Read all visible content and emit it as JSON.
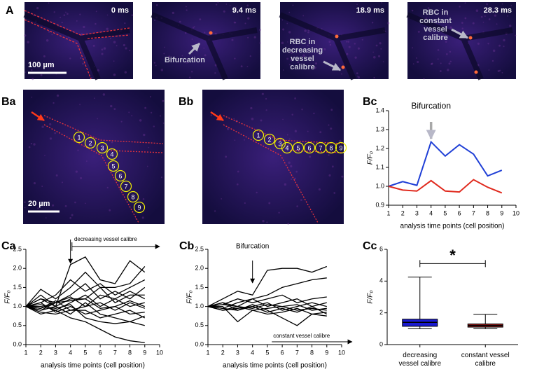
{
  "panel_labels": [
    "A",
    "Ba",
    "Bb",
    "Bc",
    "Ca",
    "Cb",
    "Cc"
  ],
  "images": [
    {
      "time": "0 ms",
      "scale_bar": "100 µm"
    },
    {
      "time": "9.4 ms",
      "annotation": [
        "Bifurcation"
      ]
    },
    {
      "time": "18.9 ms",
      "annotation": [
        "RBC in",
        "decreasing",
        "vessel",
        "calibre"
      ]
    },
    {
      "time": "28.3 ms",
      "annotation": [
        "RBC in",
        "constant",
        "vessel",
        "calibre"
      ]
    }
  ],
  "cell_images": [
    {
      "cells": [
        "1",
        "2",
        "3",
        "4",
        "5",
        "6",
        "7",
        "8",
        "9"
      ],
      "scale_bar": "20 µm"
    },
    {
      "cells": [
        "1",
        "2",
        "3",
        "4",
        "5",
        "6",
        "7",
        "8",
        "9"
      ]
    }
  ],
  "chart_data": [
    {
      "type": "line",
      "xlabel": "analysis time points (cell position)",
      "ylabel": "F/F₀",
      "annotations": [
        "Bifurcation"
      ],
      "x": [
        1,
        2,
        3,
        4,
        5,
        6,
        7,
        8,
        9
      ],
      "series": [
        {
          "color": "#1f3fd6",
          "values": [
            1.0,
            1.025,
            1.005,
            1.235,
            1.16,
            1.22,
            1.17,
            1.055,
            1.085
          ]
        },
        {
          "color": "#e02a1e",
          "values": [
            1.0,
            0.98,
            0.975,
            1.03,
            0.975,
            0.97,
            1.035,
            0.995,
            0.965
          ]
        }
      ],
      "xlim": [
        1,
        10
      ],
      "xticks": [
        1,
        2,
        3,
        4,
        5,
        6,
        7,
        8,
        9,
        10
      ],
      "ylim": [
        0.9,
        1.4
      ],
      "yticks": [
        0.9,
        {
          "value": 1,
          "label": "1.0"
        },
        1.1,
        1.2,
        1.3,
        1.4
      ]
    },
    {
      "type": "line",
      "xlabel": "analysis time points (cell position)",
      "ylabel": "F/F₀",
      "annotations": [
        "decreasing vessel calibre"
      ],
      "x": [
        1,
        2,
        3,
        4,
        5,
        6,
        7,
        8,
        9
      ],
      "series": [
        {
          "color": "#000000",
          "values": [
            1.0,
            1.2,
            1.0,
            2.1,
            2.3,
            1.7,
            1.6,
            2.2,
            1.9
          ]
        },
        {
          "color": "#000000",
          "values": [
            1.0,
            1.45,
            1.2,
            1.5,
            1.9,
            1.5,
            1.5,
            1.6,
            2.05
          ]
        },
        {
          "color": "#000000",
          "values": [
            1.0,
            1.1,
            1.3,
            1.7,
            1.4,
            1.6,
            1.3,
            1.5,
            1.7
          ]
        },
        {
          "color": "#000000",
          "values": [
            1.0,
            0.9,
            1.1,
            1.3,
            1.6,
            1.2,
            1.4,
            1.2,
            1.5
          ]
        },
        {
          "color": "#000000",
          "values": [
            1.0,
            1.3,
            1.0,
            1.2,
            1.2,
            1.5,
            1.1,
            1.3,
            1.3
          ]
        },
        {
          "color": "#000000",
          "values": [
            1.0,
            1.05,
            0.9,
            1.1,
            1.3,
            1.0,
            1.2,
            1.0,
            1.1
          ]
        },
        {
          "color": "#000000",
          "values": [
            1.0,
            0.95,
            1.15,
            0.9,
            1.0,
            1.1,
            0.9,
            1.1,
            0.95
          ]
        },
        {
          "color": "#000000",
          "values": [
            1.0,
            1.1,
            0.85,
            1.0,
            0.8,
            0.9,
            1.0,
            0.8,
            0.85
          ]
        },
        {
          "color": "#000000",
          "values": [
            1.0,
            0.85,
            0.8,
            0.9,
            0.9,
            0.7,
            0.8,
            0.9,
            0.7
          ]
        },
        {
          "color": "#000000",
          "values": [
            1.0,
            0.9,
            1.0,
            0.8,
            1.1,
            0.8,
            0.7,
            0.6,
            0.75
          ]
        },
        {
          "color": "#000000",
          "values": [
            1.0,
            1.0,
            0.95,
            1.05,
            0.7,
            0.6,
            0.55,
            0.6,
            0.5
          ]
        },
        {
          "color": "#000000",
          "values": [
            1.0,
            0.8,
            0.9,
            0.7,
            0.6,
            0.4,
            0.2,
            0.1,
            0.05
          ]
        },
        {
          "color": "#000000",
          "values": [
            1.0,
            1.2,
            1.1,
            1.25,
            1.0,
            1.3,
            1.2,
            1.4,
            1.2
          ]
        },
        {
          "color": "#000000",
          "values": [
            1.0,
            0.95,
            1.1,
            1.15,
            1.2,
            0.95,
            1.0,
            1.15,
            1.0
          ]
        }
      ],
      "xlim": [
        1,
        10
      ],
      "xticks": [
        1,
        2,
        3,
        4,
        5,
        6,
        7,
        8,
        9,
        10
      ],
      "ylim": [
        0,
        2.5
      ],
      "yticks": [
        {
          "value": 0,
          "label": "0.0"
        },
        0.5,
        {
          "value": 1,
          "label": "1.0"
        },
        1.5,
        {
          "value": 2,
          "label": "2.0"
        },
        2.5
      ]
    },
    {
      "type": "line",
      "xlabel": "analysis time points (cell position)",
      "ylabel": "F/F₀",
      "annotations": [
        "Bifurcation",
        "constant vessel calibre"
      ],
      "x": [
        1,
        2,
        3,
        4,
        5,
        6,
        7,
        8,
        9
      ],
      "series": [
        {
          "color": "#000000",
          "values": [
            1.0,
            1.2,
            1.4,
            1.3,
            1.95,
            2.0,
            2.0,
            1.9,
            2.05
          ]
        },
        {
          "color": "#000000",
          "values": [
            1.0,
            1.1,
            1.0,
            1.2,
            1.3,
            1.5,
            1.6,
            1.7,
            1.75
          ]
        },
        {
          "color": "#000000",
          "values": [
            1.0,
            1.05,
            1.2,
            1.1,
            1.2,
            1.3,
            1.1,
            1.2,
            1.25
          ]
        },
        {
          "color": "#000000",
          "values": [
            1.0,
            0.95,
            1.1,
            1.2,
            1.0,
            1.1,
            1.2,
            1.0,
            1.1
          ]
        },
        {
          "color": "#000000",
          "values": [
            1.0,
            1.1,
            0.9,
            1.0,
            1.1,
            0.9,
            1.0,
            1.1,
            1.0
          ]
        },
        {
          "color": "#000000",
          "values": [
            1.0,
            0.9,
            1.0,
            0.9,
            0.95,
            1.0,
            0.9,
            0.95,
            0.9
          ]
        },
        {
          "color": "#000000",
          "values": [
            1.0,
            1.0,
            0.6,
            0.9,
            0.8,
            0.85,
            0.95,
            0.8,
            0.85
          ]
        },
        {
          "color": "#000000",
          "values": [
            1.0,
            0.95,
            0.9,
            1.05,
            0.9,
            0.7,
            0.5,
            0.8,
            0.75
          ]
        },
        {
          "color": "#000000",
          "values": [
            1.0,
            1.05,
            1.0,
            0.95,
            1.05,
            1.0,
            1.05,
            0.9,
            0.95
          ]
        },
        {
          "color": "#000000",
          "values": [
            1.0,
            0.9,
            0.95,
            1.0,
            0.85,
            0.95,
            0.85,
            1.0,
            0.8
          ]
        }
      ],
      "xlim": [
        1,
        10
      ],
      "xticks": [
        1,
        2,
        3,
        4,
        5,
        6,
        7,
        8,
        9,
        10
      ],
      "ylim": [
        0,
        2.5
      ],
      "yticks": [
        {
          "value": 0,
          "label": "0.0"
        },
        0.5,
        {
          "value": 1,
          "label": "1.0"
        },
        1.5,
        {
          "value": 2,
          "label": "2.0"
        },
        2.5
      ]
    },
    {
      "type": "box",
      "ylabel": "F/F₀",
      "annotations": [
        "*"
      ],
      "categories": [
        "decreasing vessel calibre",
        "constant vessel calibre"
      ],
      "series": [
        {
          "color": "#1a1ad0",
          "min": 1.0,
          "q1": 1.15,
          "median": 1.4,
          "q3": 1.6,
          "max": 4.25
        },
        {
          "color": "#8b1a1a",
          "min": 1.0,
          "q1": 1.1,
          "median": 1.2,
          "q3": 1.3,
          "max": 1.9
        }
      ],
      "ylim": [
        0,
        6
      ],
      "yticks": [
        0,
        2,
        4,
        6
      ]
    }
  ]
}
